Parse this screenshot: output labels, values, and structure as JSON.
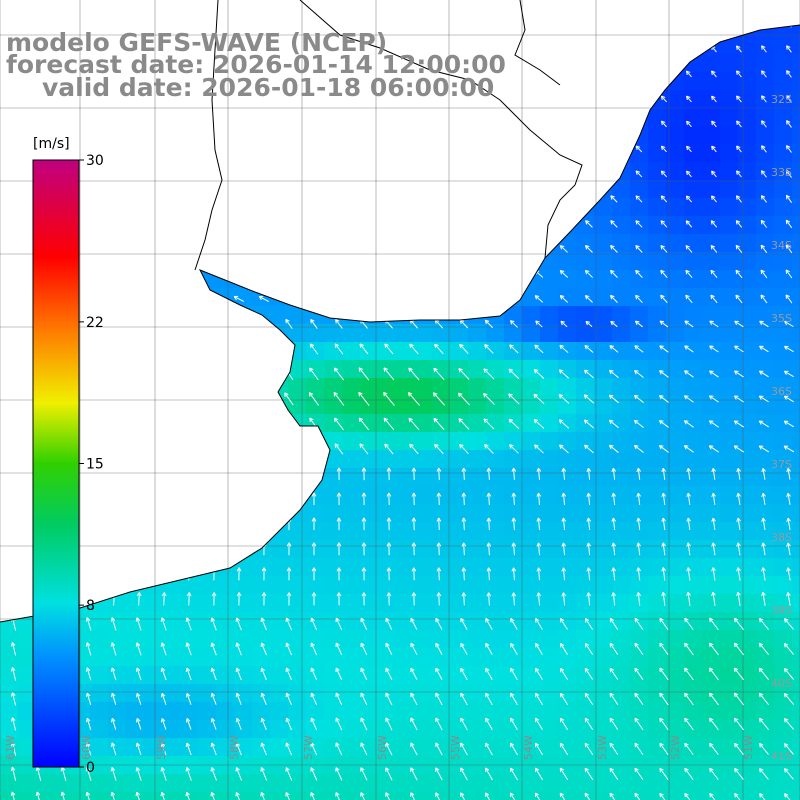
{
  "title": {
    "line1": "modelo GEFS-WAVE (NCEP)",
    "line2": "forecast date: 2026-01-14 12:00:00",
    "line3": "valid date: 2026-01-18 06:00:00"
  },
  "colorbar": {
    "unit": "[m/s]",
    "ticks": [
      "0",
      "8",
      "15",
      "22",
      "30"
    ],
    "tick_values": [
      0,
      8,
      15,
      22,
      30
    ],
    "range": [
      0,
      30
    ],
    "colors": [
      "#0000ff",
      "#00c8ff",
      "#00e0d0",
      "#00d000",
      "#f0f000",
      "#ff8000",
      "#ff0000",
      "#c00080"
    ]
  },
  "map": {
    "lat_labels": [
      "32S",
      "33S",
      "34S",
      "35S",
      "36S",
      "37S",
      "38S",
      "39S",
      "40S",
      "41S"
    ],
    "lon_labels": [
      "61W",
      "60W",
      "59W",
      "58W",
      "57W",
      "56W",
      "55W",
      "54W",
      "53W",
      "52W",
      "51W"
    ],
    "grid": "on",
    "land_color": "#ffffff",
    "coast_color": "#000000"
  }
}
